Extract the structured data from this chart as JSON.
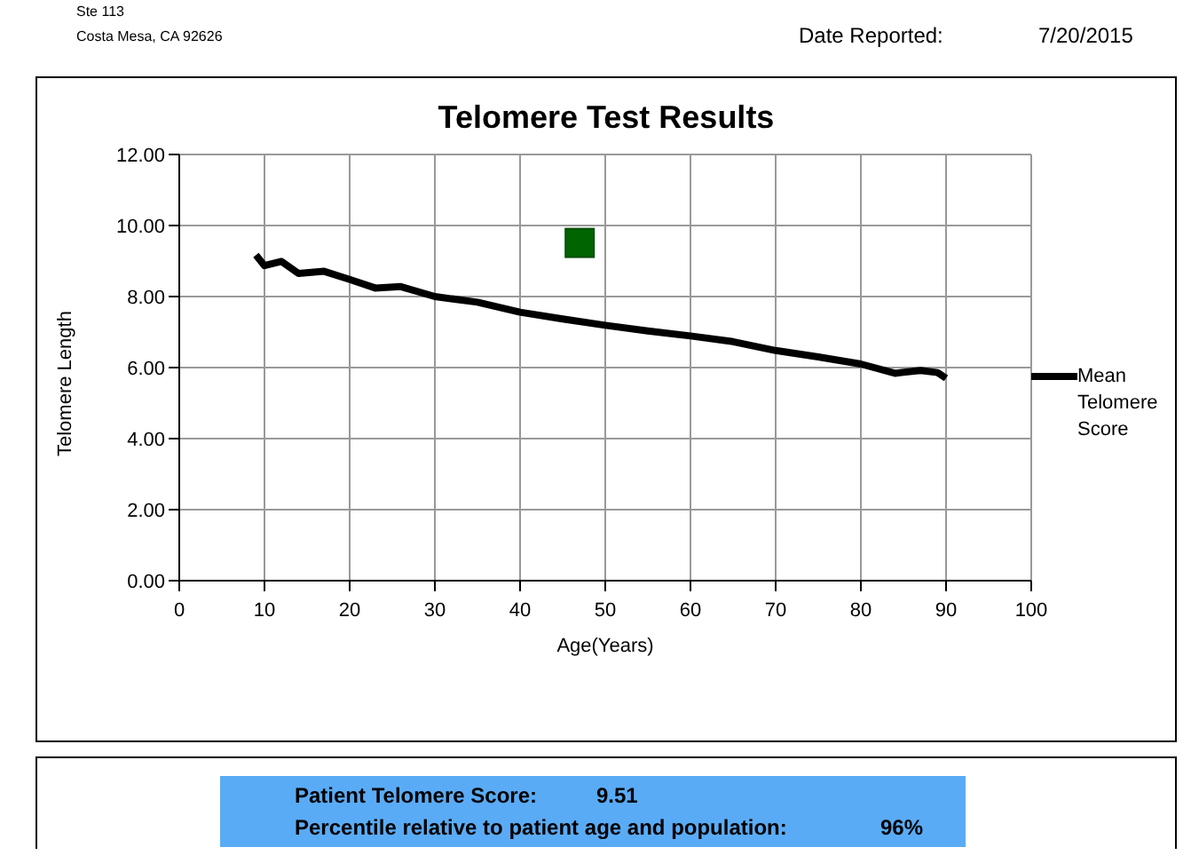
{
  "chart_data": {
    "type": "line",
    "title": "Telomere Test Results",
    "xlabel": "Age(Years)",
    "ylabel": "Telomere Length",
    "xlim": [
      0,
      100
    ],
    "xticks": [
      0,
      10,
      20,
      30,
      40,
      50,
      60,
      70,
      80,
      90,
      100
    ],
    "ylim": [
      0,
      12
    ],
    "yticks": [
      {
        "value": 0,
        "label": "0.00"
      },
      {
        "value": 2,
        "label": "2.00"
      },
      {
        "value": 4,
        "label": "4.00"
      },
      {
        "value": 6,
        "label": "6.00"
      },
      {
        "value": 8,
        "label": "8.00"
      },
      {
        "value": 10,
        "label": "10.00"
      },
      {
        "value": 12,
        "label": "12.00"
      }
    ],
    "grid": true,
    "legend": "right",
    "series": [
      {
        "name": "Mean Telomere Score",
        "color": "#000000",
        "marker": "none",
        "line_style": "solid",
        "x": [
          9,
          10,
          12,
          14,
          17,
          20,
          23,
          26,
          30,
          35,
          40,
          45,
          50,
          55,
          60,
          65,
          70,
          75,
          80,
          84,
          87,
          89,
          90
        ],
        "values": [
          9.17,
          8.87,
          8.99,
          8.65,
          8.71,
          8.48,
          8.24,
          8.28,
          8.0,
          7.84,
          7.56,
          7.37,
          7.19,
          7.03,
          6.89,
          6.73,
          6.48,
          6.3,
          6.1,
          5.84,
          5.92,
          5.86,
          5.7
        ]
      },
      {
        "type": "scatter",
        "color": "#006400",
        "marker": "square",
        "x": [
          47
        ],
        "values": [
          9.51
        ]
      }
    ],
    "annotations": [
      "Ste 113",
      "Costa Mesa, CA 92626",
      "Date Reported:",
      "7/20/2015",
      "Patient Telomere Score:",
      "9.51",
      "Percentile relative to patient age and population:",
      "96%"
    ]
  }
}
